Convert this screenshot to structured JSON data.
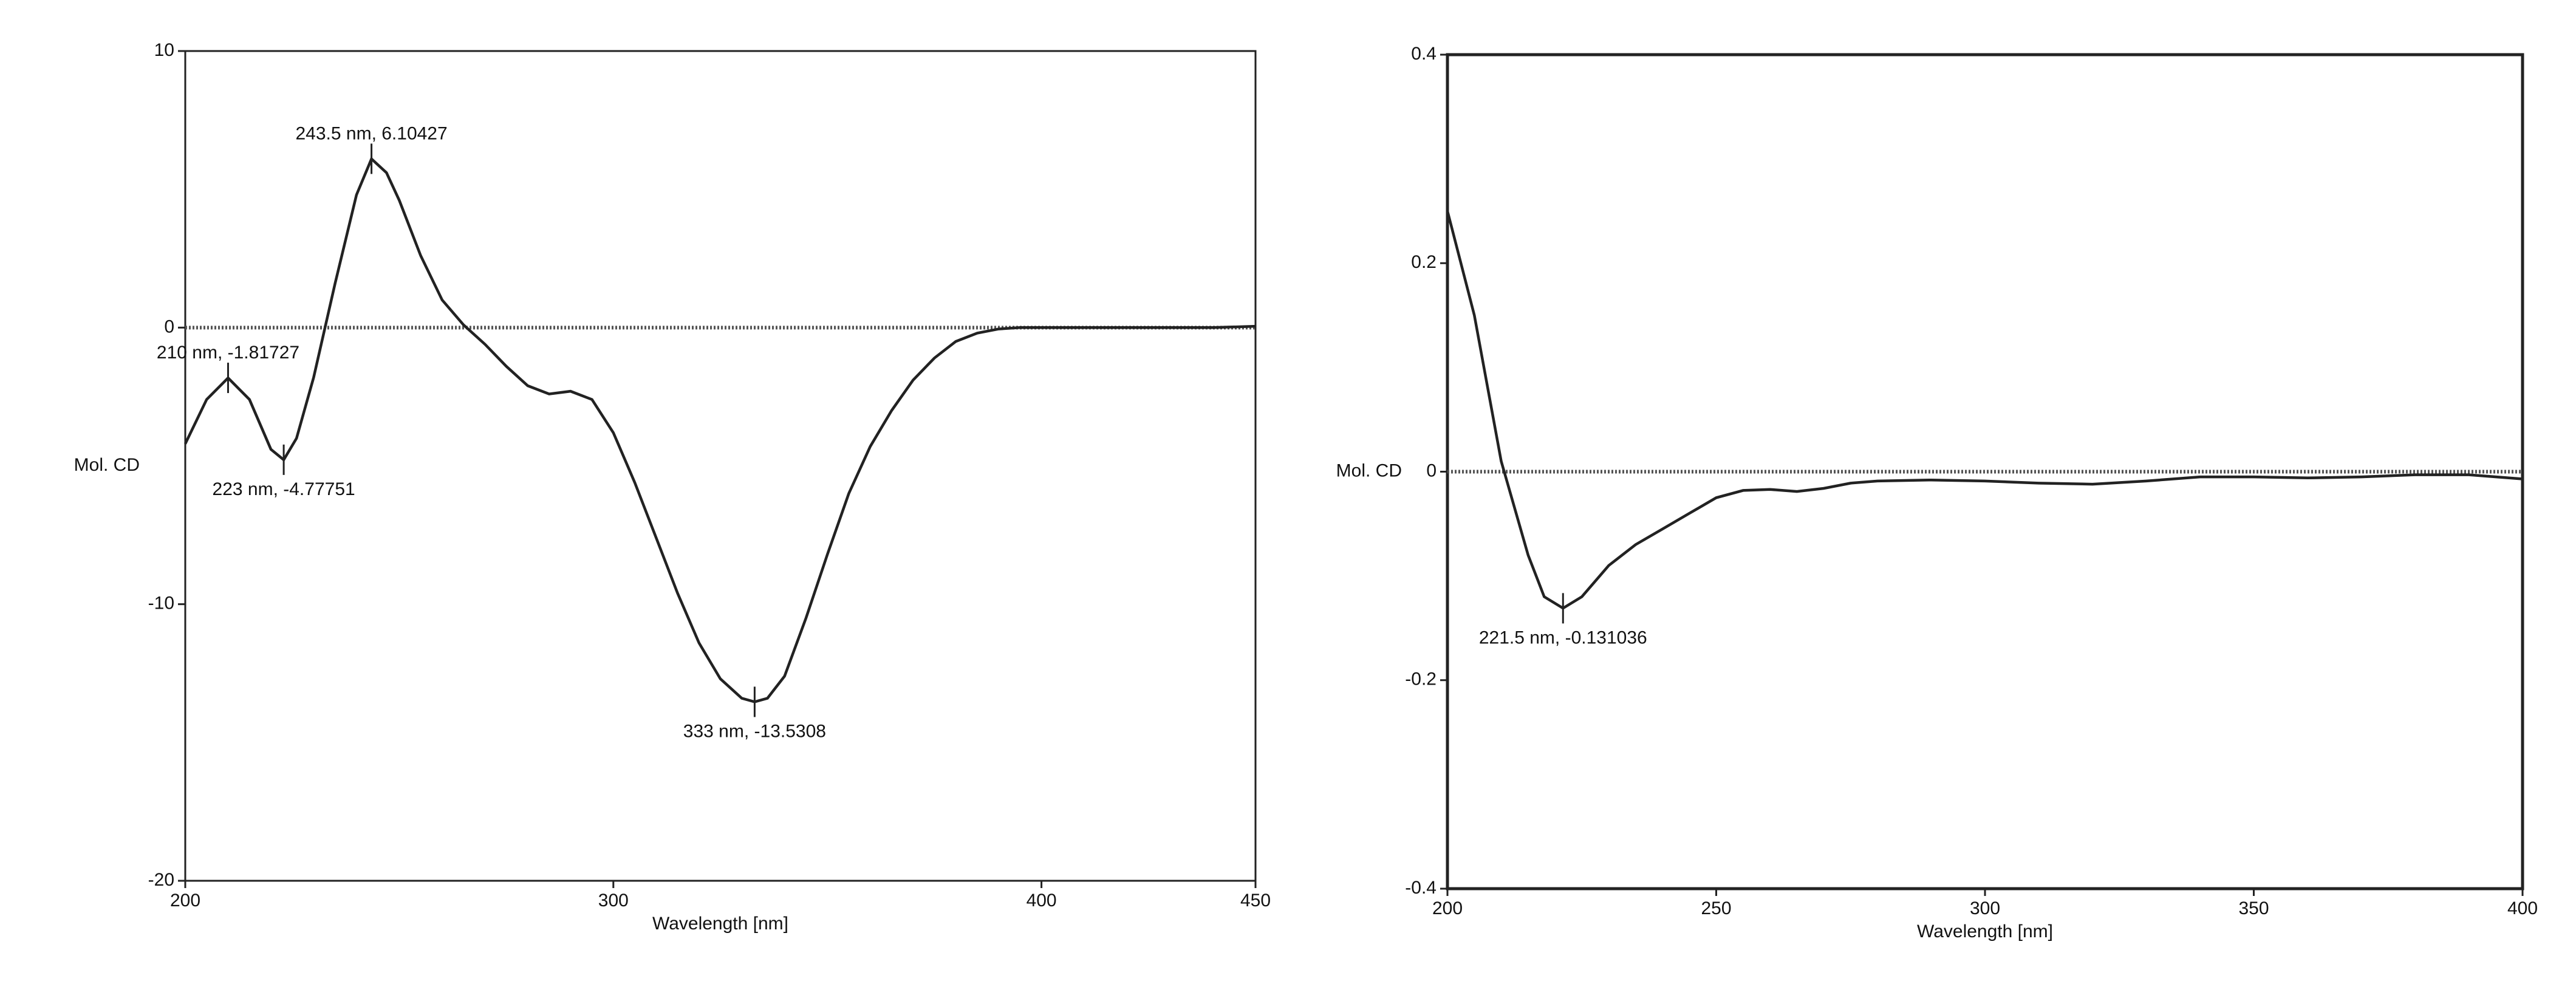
{
  "chart_data": [
    {
      "type": "line",
      "xlabel": "Wavelength [nm]",
      "ylabel": "Mol. CD",
      "x": [
        200,
        205,
        210,
        215,
        220,
        223,
        226,
        230,
        235,
        240,
        243.5,
        247,
        250,
        255,
        260,
        265,
        270,
        275,
        280,
        285,
        290,
        295,
        300,
        305,
        310,
        315,
        320,
        325,
        330,
        333,
        336,
        340,
        345,
        350,
        355,
        360,
        365,
        370,
        375,
        380,
        385,
        390,
        395,
        400,
        410,
        420,
        430,
        440,
        450
      ],
      "series": [
        {
          "color": "#222222",
          "values": [
            -4.2,
            -2.6,
            -1.82,
            -2.6,
            -4.4,
            -4.78,
            -4.0,
            -1.8,
            1.6,
            4.8,
            6.1,
            5.6,
            4.6,
            2.6,
            1.0,
            0.1,
            -0.6,
            -1.4,
            -2.1,
            -2.4,
            -2.3,
            -2.6,
            -3.8,
            -5.6,
            -7.6,
            -9.6,
            -11.4,
            -12.7,
            -13.4,
            -13.53,
            -13.4,
            -12.6,
            -10.5,
            -8.2,
            -6.0,
            -4.3,
            -3.0,
            -1.9,
            -1.1,
            -0.5,
            -0.2,
            -0.05,
            0,
            0,
            0,
            0,
            0,
            0,
            0.05
          ]
        }
      ],
      "zero_line": 0,
      "annotations": [
        {
          "x": 243.5,
          "y": 6.10427,
          "label": "243.5 nm, 6.10427"
        },
        {
          "x": 210,
          "y": -1.81727,
          "label": "210 nm, -1.81727"
        },
        {
          "x": 223,
          "y": -4.77751,
          "label": "223 nm, -4.77751"
        },
        {
          "x": 333,
          "y": -13.5308,
          "label": "333 nm, -13.5308"
        }
      ],
      "xlim": [
        200,
        450
      ],
      "xticks": [
        200,
        300,
        400,
        450
      ],
      "ylim": [
        -20,
        10
      ],
      "yticks": [
        -20,
        -10,
        0,
        10
      ]
    },
    {
      "type": "line",
      "xlabel": "Wavelength [nm]",
      "ylabel": "Mol. CD",
      "x": [
        200,
        205,
        210,
        215,
        218,
        221.5,
        225,
        230,
        235,
        240,
        245,
        250,
        255,
        260,
        265,
        270,
        275,
        280,
        290,
        300,
        310,
        320,
        330,
        340,
        350,
        360,
        370,
        380,
        390,
        400
      ],
      "series": [
        {
          "color": "#222222",
          "values": [
            0.25,
            0.15,
            0.01,
            -0.08,
            -0.12,
            -0.131,
            -0.12,
            -0.09,
            -0.07,
            -0.055,
            -0.04,
            -0.025,
            -0.018,
            -0.017,
            -0.019,
            -0.016,
            -0.011,
            -0.009,
            -0.008,
            -0.009,
            -0.011,
            -0.012,
            -0.009,
            -0.005,
            -0.005,
            -0.006,
            -0.005,
            -0.003,
            -0.003,
            -0.007
          ]
        }
      ],
      "zero_line": 0,
      "annotations": [
        {
          "x": 221.5,
          "y": -0.131036,
          "label": "221.5 nm, -0.131036"
        }
      ],
      "xlim": [
        200,
        400
      ],
      "xticks": [
        200,
        250,
        300,
        350,
        400
      ],
      "ylim": [
        -0.4,
        0.4
      ],
      "yticks": [
        -0.4,
        -0.2,
        0,
        0.2,
        0.4
      ]
    }
  ]
}
